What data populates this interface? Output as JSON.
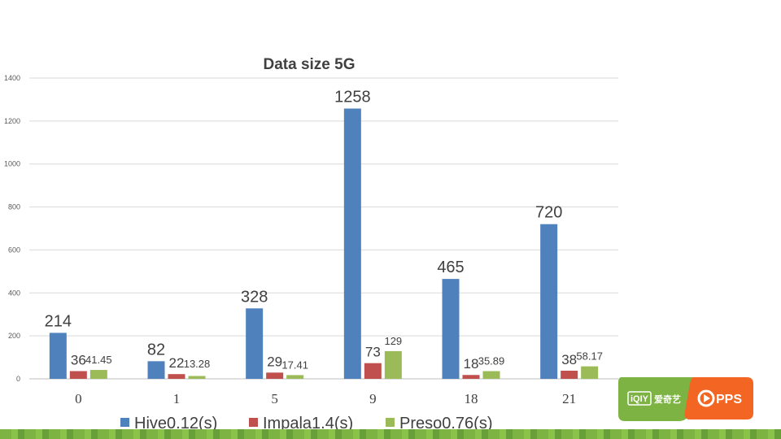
{
  "chart_data": {
    "type": "bar",
    "title": "Data size 5G",
    "categories": [
      "0",
      "1",
      "5",
      "9",
      "18",
      "21"
    ],
    "series": [
      {
        "name": "Hive0.12(s)",
        "color": "#4f81bd",
        "values": [
          214,
          82,
          328,
          1258,
          465,
          720
        ],
        "labels": [
          "214",
          "82",
          "328",
          "1258",
          "465",
          "720"
        ]
      },
      {
        "name": "Impala1.4(s)",
        "color": "#c0504d",
        "values": [
          36,
          22,
          29,
          73,
          18,
          38
        ],
        "labels": [
          "36",
          "22",
          "29",
          "73",
          "18",
          "38"
        ]
      },
      {
        "name": "Preso0.76(s)",
        "color": "#9bbb59",
        "values": [
          41.45,
          13.28,
          17.41,
          129,
          35.89,
          58.17
        ],
        "labels": [
          "41.45",
          "13.28",
          "17.41",
          "129",
          "35.89",
          "58.17"
        ]
      }
    ],
    "yticks": [
      "0",
      "200",
      "400",
      "600",
      "800",
      "1000",
      "1200",
      "1400"
    ],
    "ylim": [
      0,
      1400
    ],
    "grid": true,
    "legend": "bottom"
  },
  "logo": {
    "iqiyi_text": "iQIY",
    "iqiyi_cn": "爱奇艺",
    "pps_text": "PPS",
    "iqiyi_color": "#7cb342",
    "pps_color": "#f26522"
  }
}
